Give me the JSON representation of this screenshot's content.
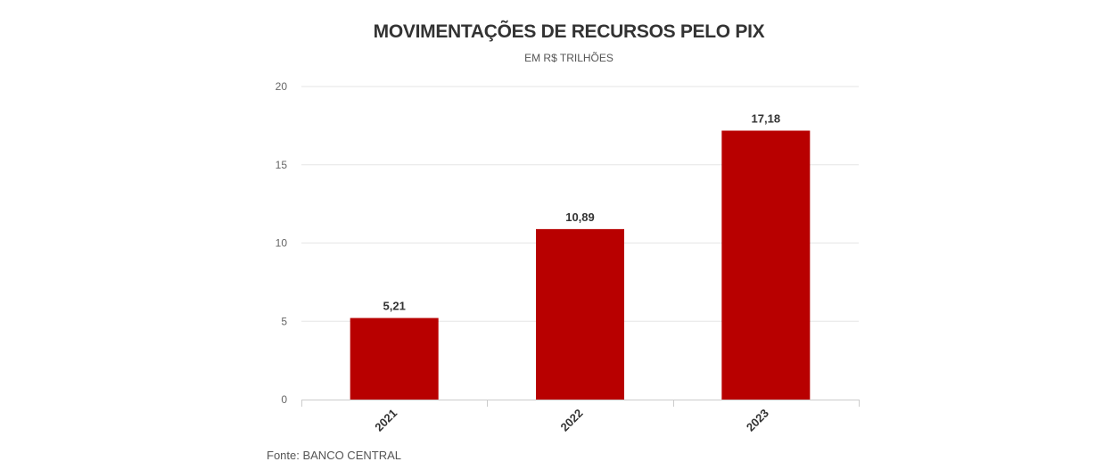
{
  "chart_data": {
    "type": "bar",
    "title": "MOVIMENTAÇÕES DE RECURSOS PELO PIX",
    "subtitle": "EM R$ TRILHÕES",
    "categories": [
      "2021",
      "2022",
      "2023"
    ],
    "values": [
      5.21,
      10.89,
      17.18
    ],
    "value_labels": [
      "5,21",
      "10,89",
      "17,18"
    ],
    "ylim": [
      0,
      20
    ],
    "yticks": [
      0,
      5,
      10,
      15,
      20
    ],
    "xlabel": "",
    "ylabel": "",
    "grid": true,
    "legend": "none",
    "bar_color": "#b80000",
    "source": "Fonte: BANCO CENTRAL"
  }
}
